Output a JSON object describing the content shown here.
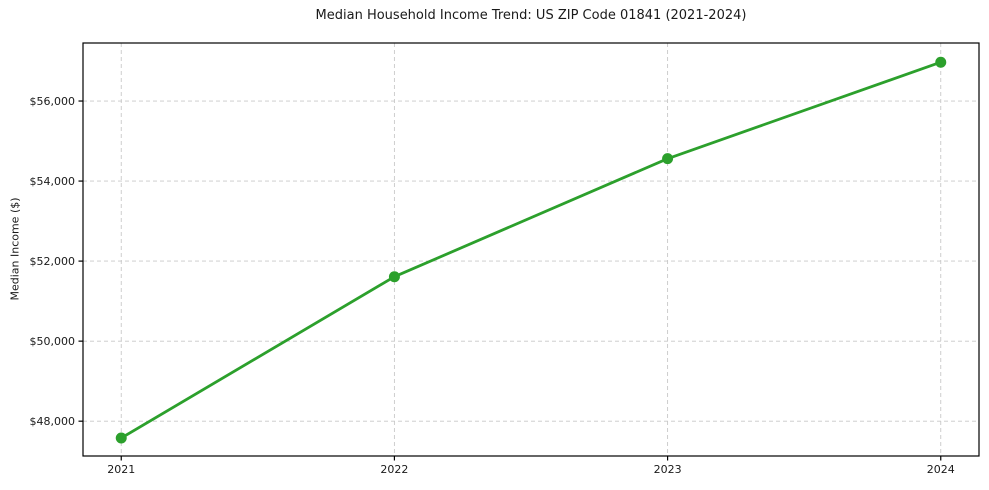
{
  "chart_data": {
    "type": "line",
    "title": "Median Household Income Trend: US ZIP Code 01841 (2021-2024)",
    "xlabel": "",
    "ylabel": "Median Income ($)",
    "x": [
      2021,
      2022,
      2023,
      2024
    ],
    "series": [
      {
        "name": "median_income",
        "values": [
          47580,
          51610,
          54560,
          56970
        ]
      }
    ],
    "xticks": [
      2021,
      2022,
      2023,
      2024
    ],
    "xtick_labels": [
      "2021",
      "2022",
      "2023",
      "2024"
    ],
    "yticks": [
      48000,
      50000,
      52000,
      54000,
      56000
    ],
    "ytick_labels": [
      "$48,000",
      "$50,000",
      "$52,000",
      "$54,000",
      "$56,000"
    ],
    "xlim": [
      2020.86,
      2024.14
    ],
    "ylim": [
      47130,
      57450
    ],
    "grid": true,
    "grid_style": "dashed",
    "legend": false,
    "line_color": "#2ca02c",
    "grid_color": "#c8c8c8",
    "axis_color": "#000000",
    "marker": "circle"
  }
}
